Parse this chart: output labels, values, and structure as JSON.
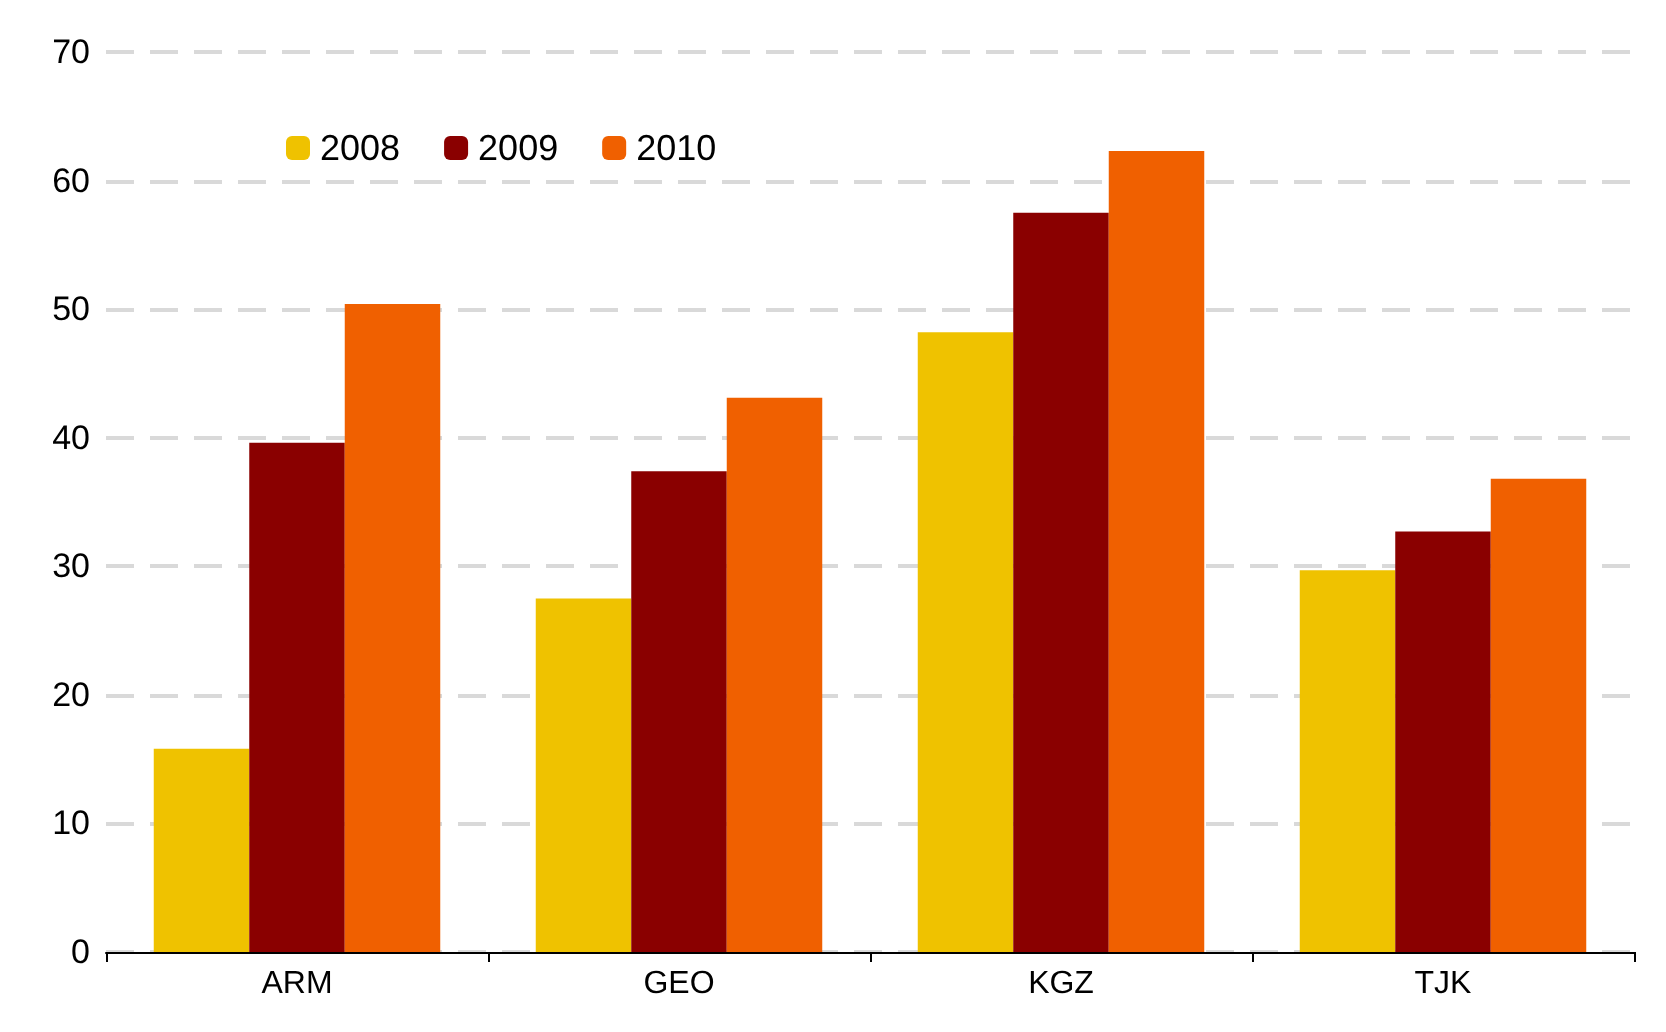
{
  "chart_data": {
    "type": "bar",
    "categories": [
      "ARM",
      "GEO",
      "KGZ",
      "TJK"
    ],
    "series": [
      {
        "name": "2008",
        "color": "#efc200",
        "values": [
          15.8,
          27.5,
          48.2,
          29.7
        ]
      },
      {
        "name": "2009",
        "color": "#8a0000",
        "values": [
          39.6,
          37.4,
          57.5,
          32.7
        ]
      },
      {
        "name": "2010",
        "color": "#f06000",
        "values": [
          50.4,
          43.1,
          62.3,
          36.8
        ]
      }
    ],
    "ylim": [
      0,
      70
    ],
    "yticks": [
      0,
      10,
      20,
      30,
      40,
      50,
      60,
      70
    ],
    "grid": "y",
    "legend": "top left"
  }
}
